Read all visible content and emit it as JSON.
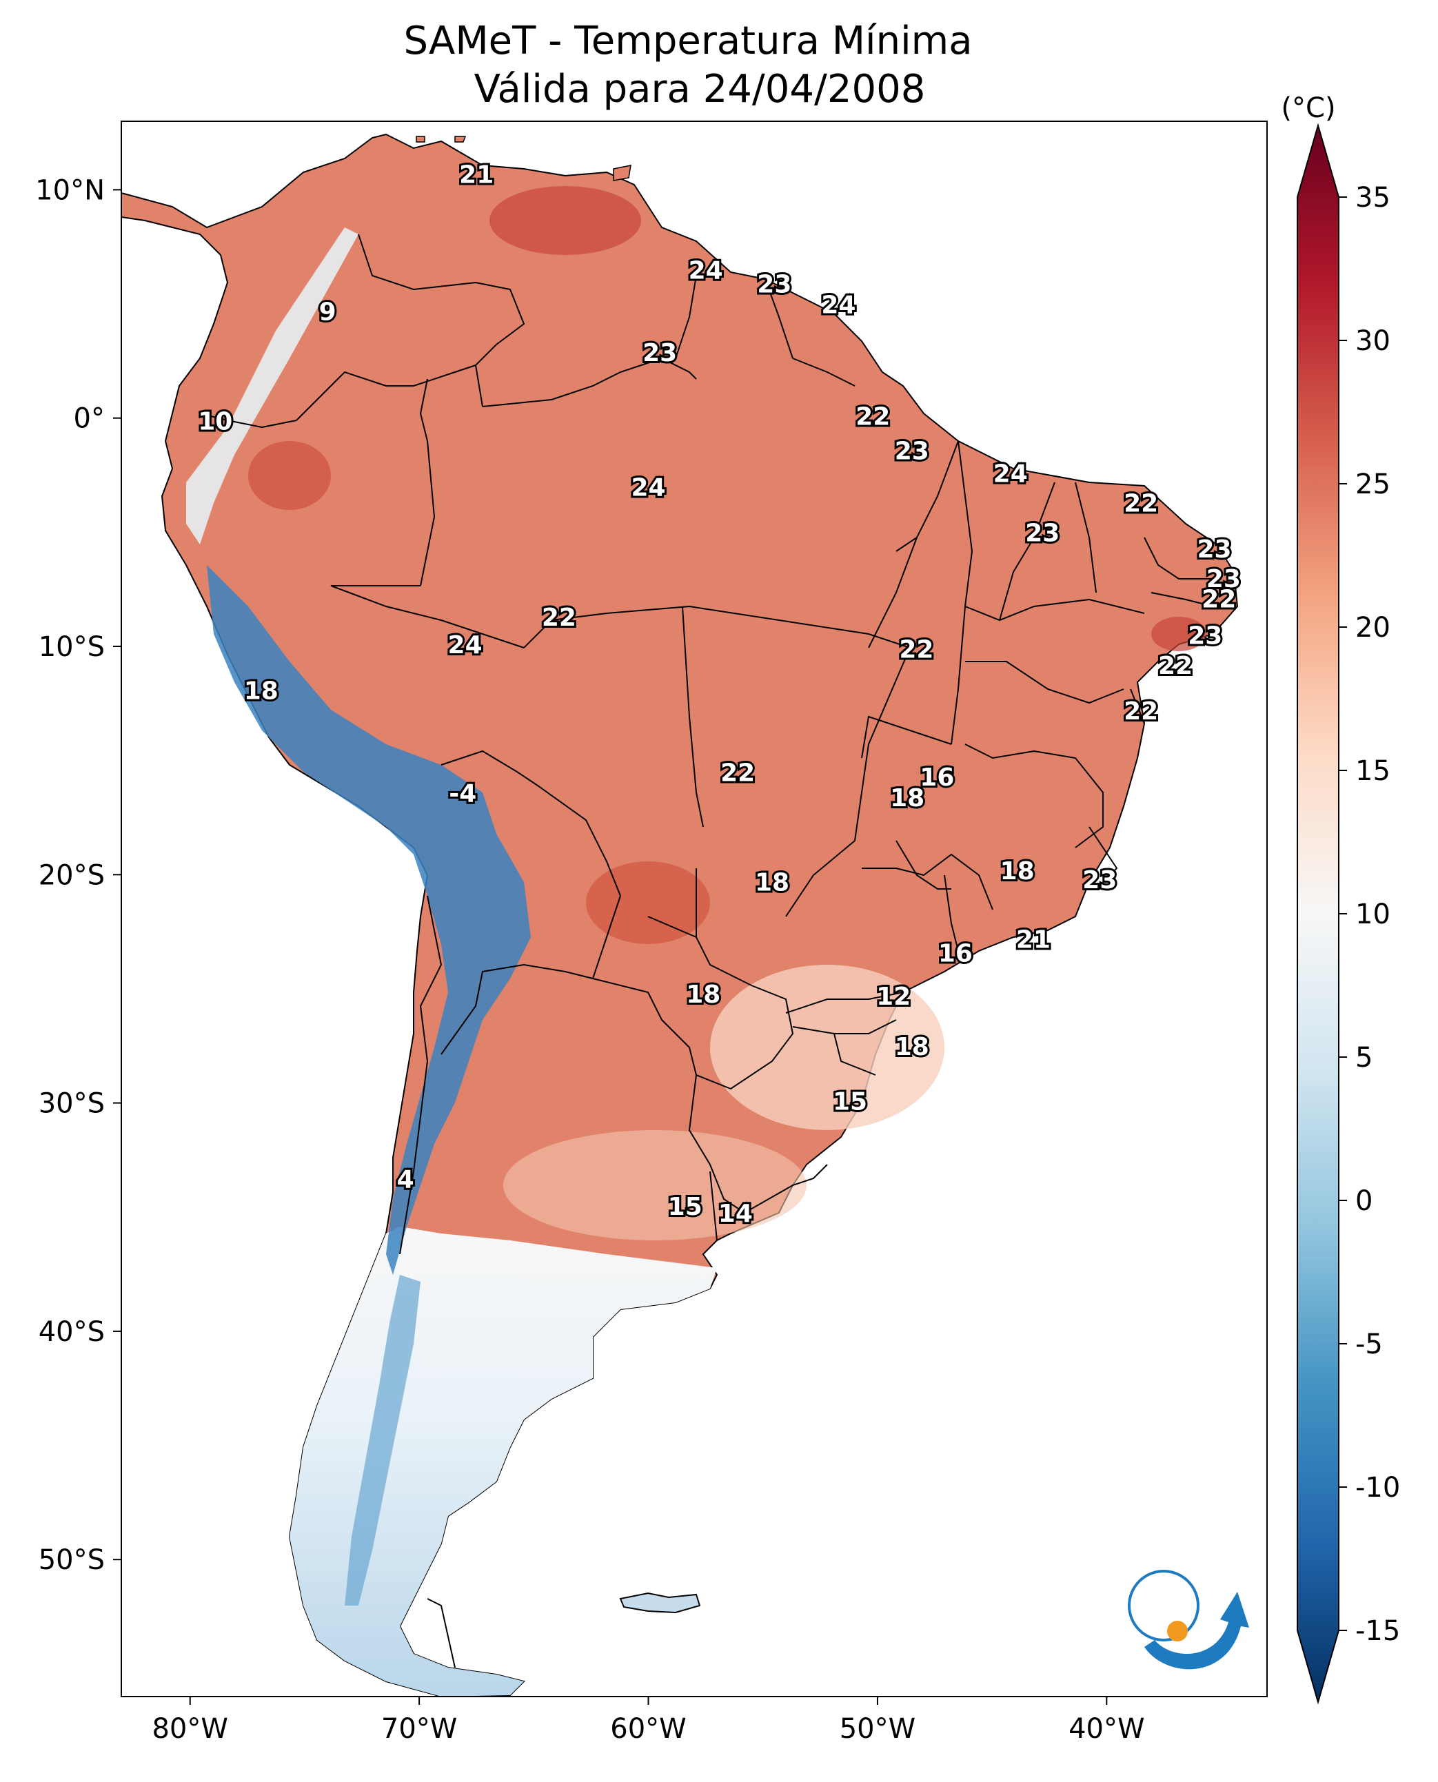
{
  "title_line1": "SAMeT - Temperatura Mínima",
  "title_line2": "Válida para 24/04/2008",
  "map": {
    "lon_range": [
      -83,
      -33
    ],
    "lat_range": [
      -56,
      13
    ],
    "lon_ticks": [
      {
        "value": -80,
        "label": "80°W"
      },
      {
        "value": -70,
        "label": "70°W"
      },
      {
        "value": -60,
        "label": "60°W"
      },
      {
        "value": -50,
        "label": "50°W"
      },
      {
        "value": -40,
        "label": "40°W"
      }
    ],
    "lat_ticks": [
      {
        "value": 10,
        "label": "10°N"
      },
      {
        "value": 0,
        "label": "0°"
      },
      {
        "value": -10,
        "label": "10°S"
      },
      {
        "value": -20,
        "label": "20°S"
      },
      {
        "value": -30,
        "label": "30°S"
      },
      {
        "value": -40,
        "label": "40°S"
      },
      {
        "value": -50,
        "label": "50°S"
      }
    ]
  },
  "colorbar": {
    "unit": "(°C)",
    "min": -15,
    "max": 35,
    "ticks": [
      {
        "value": 35,
        "label": "35"
      },
      {
        "value": 30,
        "label": "30"
      },
      {
        "value": 25,
        "label": "25"
      },
      {
        "value": 20,
        "label": "20"
      },
      {
        "value": 15,
        "label": "15"
      },
      {
        "value": 10,
        "label": "10"
      },
      {
        "value": 5,
        "label": "5"
      },
      {
        "value": 0,
        "label": "0"
      },
      {
        "value": -5,
        "label": "-5"
      },
      {
        "value": -10,
        "label": "-10"
      },
      {
        "value": -15,
        "label": "-15"
      }
    ],
    "colors": [
      "#053061",
      "#2166ac",
      "#4393c3",
      "#92c5de",
      "#d1e5f0",
      "#f7f7f7",
      "#fddbc7",
      "#f4a582",
      "#d6604d",
      "#b2182b",
      "#67001f"
    ]
  },
  "station_labels": [
    {
      "lon": -67.5,
      "lat": 10.6,
      "value": "21"
    },
    {
      "lon": -57.5,
      "lat": 6.4,
      "value": "24"
    },
    {
      "lon": -54.5,
      "lat": 5.8,
      "value": "23"
    },
    {
      "lon": -51.7,
      "lat": 4.9,
      "value": "24"
    },
    {
      "lon": -74.0,
      "lat": 4.6,
      "value": "9"
    },
    {
      "lon": -59.5,
      "lat": 2.8,
      "value": "23"
    },
    {
      "lon": -78.9,
      "lat": -0.2,
      "value": "10"
    },
    {
      "lon": -50.2,
      "lat": 0.0,
      "value": "22"
    },
    {
      "lon": -48.5,
      "lat": -1.5,
      "value": "23"
    },
    {
      "lon": -60.0,
      "lat": -3.1,
      "value": "24"
    },
    {
      "lon": -44.2,
      "lat": -2.5,
      "value": "24"
    },
    {
      "lon": -38.5,
      "lat": -3.8,
      "value": "22"
    },
    {
      "lon": -42.8,
      "lat": -5.1,
      "value": "23"
    },
    {
      "lon": -35.3,
      "lat": -5.8,
      "value": "23"
    },
    {
      "lon": -34.9,
      "lat": -7.1,
      "value": "23"
    },
    {
      "lon": -35.1,
      "lat": -8.0,
      "value": "22"
    },
    {
      "lon": -63.9,
      "lat": -8.8,
      "value": "22"
    },
    {
      "lon": -35.7,
      "lat": -9.6,
      "value": "23"
    },
    {
      "lon": -68.0,
      "lat": -10.0,
      "value": "24"
    },
    {
      "lon": -48.3,
      "lat": -10.2,
      "value": "22"
    },
    {
      "lon": -37.0,
      "lat": -10.9,
      "value": "22"
    },
    {
      "lon": -76.9,
      "lat": -12.0,
      "value": "18"
    },
    {
      "lon": -38.5,
      "lat": -12.9,
      "value": "22"
    },
    {
      "lon": -56.1,
      "lat": -15.6,
      "value": "22"
    },
    {
      "lon": -47.4,
      "lat": -15.8,
      "value": "16"
    },
    {
      "lon": -48.7,
      "lat": -16.7,
      "value": "18"
    },
    {
      "lon": -68.1,
      "lat": -16.5,
      "value": "-4"
    },
    {
      "lon": -43.9,
      "lat": -19.9,
      "value": "18"
    },
    {
      "lon": -54.6,
      "lat": -20.4,
      "value": "18"
    },
    {
      "lon": -40.3,
      "lat": -20.3,
      "value": "23"
    },
    {
      "lon": -43.2,
      "lat": -22.9,
      "value": "21"
    },
    {
      "lon": -46.6,
      "lat": -23.5,
      "value": "16"
    },
    {
      "lon": -57.6,
      "lat": -25.3,
      "value": "18"
    },
    {
      "lon": -49.3,
      "lat": -25.4,
      "value": "12"
    },
    {
      "lon": -48.5,
      "lat": -27.6,
      "value": "18"
    },
    {
      "lon": -51.2,
      "lat": -30.0,
      "value": "15"
    },
    {
      "lon": -70.6,
      "lat": -33.4,
      "value": "4"
    },
    {
      "lon": -58.4,
      "lat": -34.6,
      "value": "15"
    },
    {
      "lon": -56.2,
      "lat": -34.9,
      "value": "14"
    }
  ]
}
